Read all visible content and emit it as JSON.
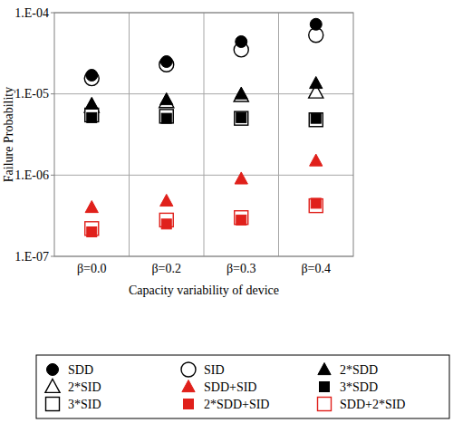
{
  "chart_data": {
    "type": "scatter",
    "x_label": "Capacity variability of device",
    "y_label": "Failure Probability",
    "categories": [
      "β=0.0",
      "β=0.2",
      "β=0.3",
      "β=0.4"
    ],
    "log": "y",
    "grid": true,
    "legend": "bottom",
    "ylim": [
      1e-07,
      0.0001
    ],
    "yticks": [
      {
        "value": 1e-07,
        "label": "1.E-07"
      },
      {
        "value": 1e-06,
        "label": "1.E-06"
      },
      {
        "value": 1e-05,
        "label": "1.E-05"
      },
      {
        "value": 0.0001,
        "label": "1.E-04"
      }
    ],
    "series": [
      {
        "name": "SDD",
        "color": "#000000",
        "marker": "filled-circle",
        "values": [
          1.7e-05,
          2.5e-05,
          4.4e-05,
          7.2e-05
        ]
      },
      {
        "name": "SID",
        "color": "#000000",
        "marker": "open-circle",
        "values": [
          1.55e-05,
          2.3e-05,
          3.5e-05,
          5.3e-05
        ]
      },
      {
        "name": "2*SDD",
        "color": "#000000",
        "marker": "filled-triangle",
        "values": [
          7.5e-06,
          8.5e-06,
          1e-05,
          1.35e-05
        ]
      },
      {
        "name": "2*SID",
        "color": "#000000",
        "marker": "open-triangle",
        "values": [
          7e-06,
          8e-06,
          9.5e-06,
          1.05e-05
        ]
      },
      {
        "name": "SDD+SID",
        "color": "#e0201b",
        "marker": "filled-triangle",
        "values": [
          4e-07,
          4.8e-07,
          9e-07,
          1.5e-06
        ]
      },
      {
        "name": "3*SDD",
        "color": "#000000",
        "marker": "filled-square",
        "values": [
          5.1e-06,
          5e-06,
          5.1e-06,
          5e-06
        ]
      },
      {
        "name": "3*SID",
        "color": "#000000",
        "marker": "open-square",
        "values": [
          5.5e-06,
          5.3e-06,
          5e-06,
          4.8e-06
        ]
      },
      {
        "name": "2*SDD+SID",
        "color": "#e0201b",
        "marker": "filled-square",
        "values": [
          2e-07,
          2.5e-07,
          2.8e-07,
          4.5e-07
        ]
      },
      {
        "name": "SDD+2*SID",
        "color": "#e0201b",
        "marker": "open-square",
        "values": [
          2.2e-07,
          2.8e-07,
          3e-07,
          4.2e-07
        ]
      }
    ]
  }
}
